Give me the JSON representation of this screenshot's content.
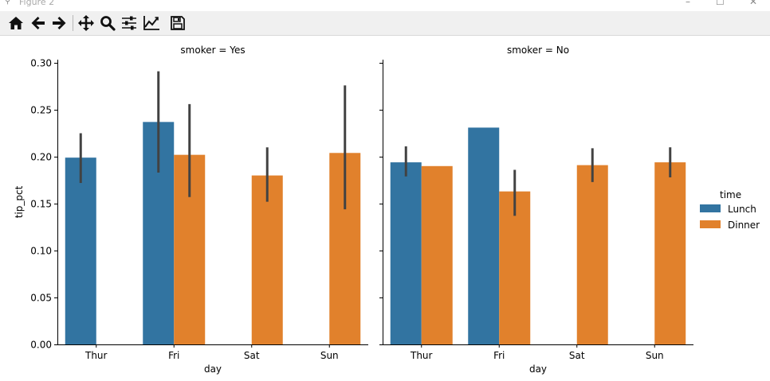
{
  "window": {
    "title": "Figure 2",
    "controls": {
      "minimize": "–",
      "maximize": "☐",
      "close": "✕"
    }
  },
  "toolbar": {
    "buttons": [
      "home-icon",
      "back-icon",
      "forward-icon",
      "pan-icon",
      "zoom-icon",
      "configure-subplots-icon",
      "edit-axis-icon",
      "save-icon"
    ]
  },
  "chart_data": {
    "type": "bar",
    "ylabel": "tip_pct",
    "ylim": [
      0,
      0.305
    ],
    "yticks": [
      0.0,
      0.05,
      0.1,
      0.15,
      0.2,
      0.25,
      0.3
    ],
    "ytick_labels": [
      "0.00",
      "0.05",
      "0.10",
      "0.15",
      "0.20",
      "0.25",
      "0.30"
    ],
    "xlabel": "day",
    "categories": [
      "Thur",
      "Fri",
      "Sat",
      "Sun"
    ],
    "legend": {
      "title": "time",
      "position": "right"
    },
    "colors": {
      "Lunch": "#3274a1",
      "Dinner": "#e1812c",
      "errorbar": "#424242",
      "axis": "#000000"
    },
    "facets": [
      {
        "title": "smoker = Yes",
        "series": [
          {
            "name": "Lunch",
            "values": [
              0.199,
              0.237,
              null,
              null
            ],
            "ci_low": [
              0.172,
              0.183,
              null,
              null
            ],
            "ci_high": [
              0.225,
              0.291,
              null,
              null
            ]
          },
          {
            "name": "Dinner",
            "values": [
              null,
              0.202,
              0.18,
              0.204
            ],
            "ci_low": [
              null,
              0.157,
              0.152,
              0.144
            ],
            "ci_high": [
              null,
              0.256,
              0.21,
              0.276
            ]
          }
        ]
      },
      {
        "title": "smoker = No",
        "series": [
          {
            "name": "Lunch",
            "values": [
              0.194,
              0.231,
              null,
              null
            ],
            "ci_low": [
              0.179,
              null,
              null,
              null
            ],
            "ci_high": [
              0.211,
              null,
              null,
              null
            ]
          },
          {
            "name": "Dinner",
            "values": [
              0.19,
              0.163,
              0.191,
              0.194
            ],
            "ci_low": [
              null,
              0.137,
              0.173,
              0.178
            ],
            "ci_high": [
              null,
              0.186,
              0.209,
              0.21
            ]
          }
        ]
      }
    ]
  }
}
